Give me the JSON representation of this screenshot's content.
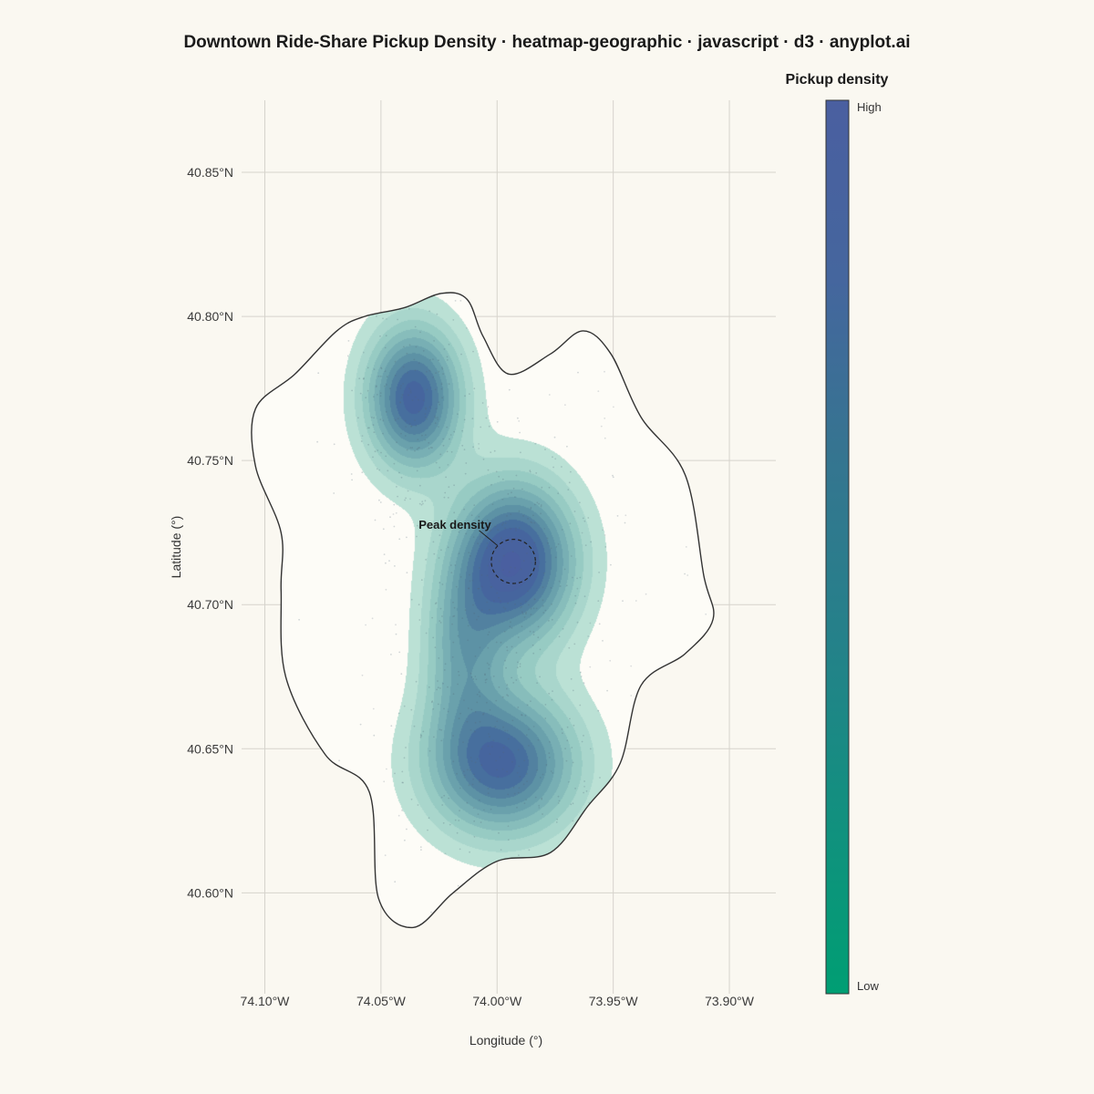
{
  "chart_data": {
    "type": "heatmap",
    "title": "Downtown Ride-Share Pickup Density · heatmap-geographic · javascript · d3 · anyplot.ai",
    "xlabel": "Longitude (°)",
    "ylabel": "Latitude (°)",
    "xlim": [
      -74.11,
      -73.88
    ],
    "ylim": [
      40.565,
      40.875
    ],
    "x_ticks": [
      {
        "value": -74.1,
        "label": "74.10°W"
      },
      {
        "value": -74.05,
        "label": "74.05°W"
      },
      {
        "value": -74.0,
        "label": "74.00°W"
      },
      {
        "value": -73.95,
        "label": "73.95°W"
      },
      {
        "value": -73.9,
        "label": "73.90°W"
      }
    ],
    "y_ticks": [
      {
        "value": 40.85,
        "label": "40.85°N"
      },
      {
        "value": 40.8,
        "label": "40.80°N"
      },
      {
        "value": 40.75,
        "label": "40.75°N"
      },
      {
        "value": 40.7,
        "label": "40.70°N"
      },
      {
        "value": 40.65,
        "label": "40.65°N"
      },
      {
        "value": 40.6,
        "label": "40.60°N"
      }
    ],
    "grid": true,
    "hotspots": [
      {
        "lon": -74.036,
        "lat": 40.772,
        "sx": 0.014,
        "sy": 0.017,
        "weight": 0.88
      },
      {
        "lon": -73.993,
        "lat": 40.715,
        "sx": 0.018,
        "sy": 0.019,
        "weight": 1.0
      },
      {
        "lon": -73.998,
        "lat": 40.645,
        "sx": 0.022,
        "sy": 0.017,
        "weight": 0.85
      },
      {
        "lon": -74.015,
        "lat": 40.683,
        "sx": 0.012,
        "sy": 0.02,
        "weight": 0.42
      }
    ],
    "boundary": [
      [
        -74.069,
        40.795
      ],
      [
        -74.057,
        40.8
      ],
      [
        -74.04,
        40.803
      ],
      [
        -74.024,
        40.808
      ],
      [
        -74.013,
        40.806
      ],
      [
        -74.006,
        40.793
      ],
      [
        -73.995,
        40.78
      ],
      [
        -73.977,
        40.787
      ],
      [
        -73.963,
        40.795
      ],
      [
        -73.951,
        40.787
      ],
      [
        -73.938,
        40.765
      ],
      [
        -73.919,
        40.745
      ],
      [
        -73.911,
        40.71
      ],
      [
        -73.907,
        40.695
      ],
      [
        -73.919,
        40.683
      ],
      [
        -73.938,
        40.672
      ],
      [
        -73.947,
        40.645
      ],
      [
        -73.961,
        40.63
      ],
      [
        -73.977,
        40.614
      ],
      [
        -74.0,
        40.611
      ],
      [
        -74.019,
        40.6
      ],
      [
        -74.036,
        40.588
      ],
      [
        -74.051,
        40.598
      ],
      [
        -74.055,
        40.635
      ],
      [
        -74.074,
        40.648
      ],
      [
        -74.091,
        40.675
      ],
      [
        -74.093,
        40.705
      ],
      [
        -74.093,
        40.725
      ],
      [
        -74.104,
        40.748
      ],
      [
        -74.104,
        40.768
      ],
      [
        -74.087,
        40.78
      ]
    ],
    "annotation": {
      "text": "Peak density",
      "lon": -73.993,
      "lat": 40.715,
      "radius_deg": 0.0095
    },
    "colorbar": {
      "title": "Pickup density",
      "high_label": "High",
      "low_label": "Low",
      "colors": [
        "#009E73",
        "#12907F",
        "#25818A",
        "#357590",
        "#45669E",
        "#4A5FA0"
      ]
    },
    "point_color": "#556677",
    "background_color": "#FAF8F1",
    "land_color": "#FDFCF7"
  }
}
